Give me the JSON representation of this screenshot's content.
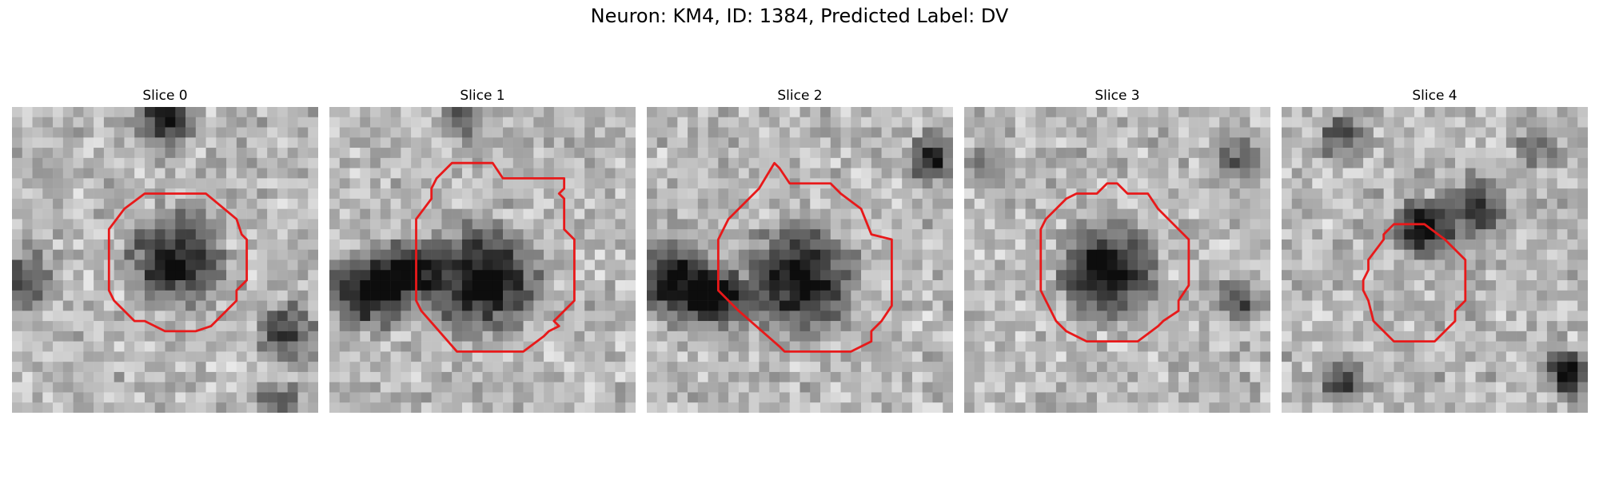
{
  "figure": {
    "title": "Neuron: KM4, ID: 1384, Predicted Label: DV",
    "colors": {
      "contour": "#e8191a",
      "background": "#ffffff"
    },
    "grid_size": 30
  },
  "panels": [
    {
      "title": "Slice 0",
      "contour": [
        [
          13,
          8.5
        ],
        [
          19,
          8.5
        ],
        [
          22,
          11
        ],
        [
          22.5,
          12.5
        ],
        [
          23,
          13
        ],
        [
          23,
          17
        ],
        [
          22,
          18
        ],
        [
          22,
          19
        ],
        [
          20,
          21
        ],
        [
          19.5,
          21.5
        ],
        [
          18,
          22
        ],
        [
          15,
          22
        ],
        [
          13,
          21
        ],
        [
          12,
          21
        ],
        [
          10,
          19
        ],
        [
          9.5,
          18
        ],
        [
          9.5,
          12
        ],
        [
          11,
          10
        ]
      ],
      "blobs": [
        {
          "cx": 16,
          "cy": 15,
          "r": 6,
          "d": 0.75
        },
        {
          "cx": 15,
          "cy": 1,
          "r": 4,
          "d": 0.75
        },
        {
          "cx": 27,
          "cy": 22,
          "r": 4,
          "d": 0.55
        },
        {
          "cx": 1,
          "cy": 17,
          "r": 4,
          "d": 0.55
        },
        {
          "cx": 26,
          "cy": 29,
          "r": 3,
          "d": 0.45
        }
      ]
    },
    {
      "title": "Slice 1",
      "contour": [
        [
          12,
          5.5
        ],
        [
          16,
          5.5
        ],
        [
          17,
          7
        ],
        [
          23,
          7
        ],
        [
          23,
          8
        ],
        [
          22.5,
          8.5
        ],
        [
          23,
          9
        ],
        [
          23,
          10
        ],
        [
          23,
          12
        ],
        [
          24,
          13
        ],
        [
          24,
          19
        ],
        [
          23,
          20
        ],
        [
          22,
          21
        ],
        [
          22.5,
          21.5
        ],
        [
          21.5,
          22
        ],
        [
          21,
          22.5
        ],
        [
          19,
          24
        ],
        [
          12.5,
          24
        ],
        [
          9,
          20
        ],
        [
          8.5,
          19
        ],
        [
          8.5,
          11
        ],
        [
          10,
          9
        ],
        [
          10,
          8
        ],
        [
          10.5,
          7
        ]
      ],
      "blobs": [
        {
          "cx": 15,
          "cy": 17,
          "r": 7,
          "d": 0.85
        },
        {
          "cx": 4,
          "cy": 18,
          "r": 5,
          "d": 0.85
        },
        {
          "cx": 8,
          "cy": 16,
          "r": 4,
          "d": 0.75
        },
        {
          "cx": 13,
          "cy": 1,
          "r": 3,
          "d": 0.5
        }
      ]
    },
    {
      "title": "Slice 2",
      "contour": [
        [
          12.5,
          5.5
        ],
        [
          13,
          6
        ],
        [
          14,
          7.5
        ],
        [
          18,
          7.5
        ],
        [
          19,
          8.5
        ],
        [
          21,
          10
        ],
        [
          22,
          12.5
        ],
        [
          24,
          13
        ],
        [
          24,
          19.5
        ],
        [
          23,
          21
        ],
        [
          22,
          22
        ],
        [
          22,
          23
        ],
        [
          21,
          23.5
        ],
        [
          20,
          24
        ],
        [
          13.5,
          24
        ],
        [
          13,
          23.5
        ],
        [
          9,
          20
        ],
        [
          7,
          18
        ],
        [
          7,
          13
        ],
        [
          8,
          11
        ],
        [
          11,
          8
        ]
      ],
      "blobs": [
        {
          "cx": 15,
          "cy": 17,
          "r": 7,
          "d": 0.8
        },
        {
          "cx": 3,
          "cy": 17,
          "r": 5,
          "d": 0.85
        },
        {
          "cx": 7,
          "cy": 19,
          "r": 4,
          "d": 0.8
        },
        {
          "cx": 28,
          "cy": 5,
          "r": 3,
          "d": 0.7
        }
      ]
    },
    {
      "title": "Slice 3",
      "contour": [
        [
          14,
          7.5
        ],
        [
          15,
          7.5
        ],
        [
          16,
          8.5
        ],
        [
          18,
          8.5
        ],
        [
          19,
          10
        ],
        [
          20,
          11
        ],
        [
          22,
          13
        ],
        [
          22,
          17.5
        ],
        [
          21,
          19
        ],
        [
          21,
          20
        ],
        [
          19.5,
          21
        ],
        [
          19,
          21.5
        ],
        [
          17,
          23
        ],
        [
          12,
          23
        ],
        [
          10,
          22
        ],
        [
          9,
          21
        ],
        [
          8,
          19
        ],
        [
          7.5,
          18
        ],
        [
          7.5,
          12
        ],
        [
          8,
          11
        ],
        [
          10,
          9
        ],
        [
          11,
          8.5
        ],
        [
          13,
          8.5
        ]
      ],
      "blobs": [
        {
          "cx": 14,
          "cy": 16,
          "r": 6,
          "d": 0.85
        },
        {
          "cx": 27,
          "cy": 5,
          "r": 3,
          "d": 0.45
        },
        {
          "cx": 2,
          "cy": 6,
          "r": 3,
          "d": 0.4
        },
        {
          "cx": 27,
          "cy": 19,
          "r": 3,
          "d": 0.45
        }
      ]
    },
    {
      "title": "Slice 4",
      "contour": [
        [
          11,
          11.5
        ],
        [
          14,
          11.5
        ],
        [
          16,
          13
        ],
        [
          18,
          15
        ],
        [
          18,
          19
        ],
        [
          17,
          20
        ],
        [
          17,
          21
        ],
        [
          15,
          23
        ],
        [
          11,
          23
        ],
        [
          10,
          22
        ],
        [
          9,
          21
        ],
        [
          8.5,
          19
        ],
        [
          8,
          18
        ],
        [
          8,
          17
        ],
        [
          8.5,
          16
        ],
        [
          8.5,
          15
        ],
        [
          10,
          13
        ],
        [
          10,
          12.5
        ]
      ],
      "blobs": [
        {
          "cx": 14,
          "cy": 12,
          "r": 4,
          "d": 0.8
        },
        {
          "cx": 19,
          "cy": 10,
          "r": 4,
          "d": 0.6
        },
        {
          "cx": 6,
          "cy": 3,
          "r": 3,
          "d": 0.5
        },
        {
          "cx": 28,
          "cy": 26,
          "r": 3,
          "d": 0.85
        },
        {
          "cx": 6,
          "cy": 27,
          "r": 3,
          "d": 0.6
        },
        {
          "cx": 25,
          "cy": 4,
          "r": 3,
          "d": 0.4
        }
      ]
    }
  ]
}
